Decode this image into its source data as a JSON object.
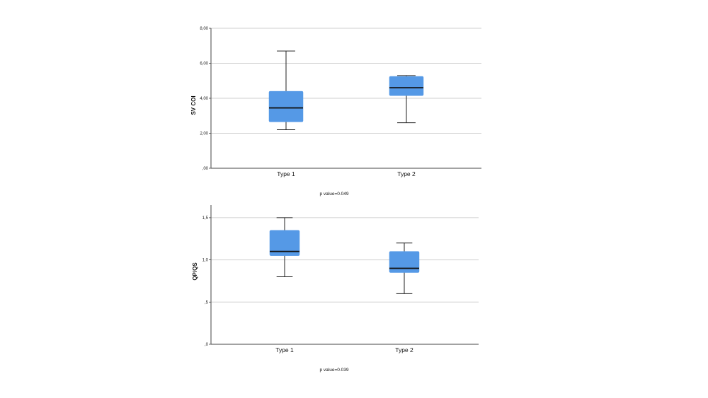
{
  "chart_data": [
    {
      "type": "box",
      "title": "",
      "xlabel": "",
      "ylabel": "SV COI",
      "ylim": [
        0,
        8
      ],
      "yticks": [
        0,
        2,
        4,
        6,
        8
      ],
      "ytick_labels": [
        ",00",
        "2,00",
        "4,00",
        "6,00",
        "8,00"
      ],
      "grid": true,
      "categories": [
        "Type 1",
        "Type 2"
      ],
      "boxes": [
        {
          "min": 2.2,
          "q1": 2.65,
          "median": 3.45,
          "q3": 4.4,
          "max": 6.7
        },
        {
          "min": 2.6,
          "q1": 4.15,
          "median": 4.6,
          "q3": 5.25,
          "max": 5.3
        }
      ],
      "annotation": "p value=0.049",
      "box_color": "#5599e6"
    },
    {
      "type": "box",
      "title": "",
      "xlabel": "",
      "ylabel": "QP/QS",
      "ylim": [
        0,
        1.65
      ],
      "yticks": [
        0,
        0.5,
        1.0,
        1.5
      ],
      "ytick_labels": [
        ",0",
        ",5",
        "1,0",
        "1,5"
      ],
      "grid": true,
      "categories": [
        "Type 1",
        "Type 2"
      ],
      "boxes": [
        {
          "min": 0.8,
          "q1": 1.05,
          "median": 1.1,
          "q3": 1.35,
          "max": 1.5
        },
        {
          "min": 0.6,
          "q1": 0.85,
          "median": 0.9,
          "q3": 1.1,
          "max": 1.2
        }
      ],
      "annotation": "p value=0.039",
      "box_color": "#5599e6"
    }
  ]
}
